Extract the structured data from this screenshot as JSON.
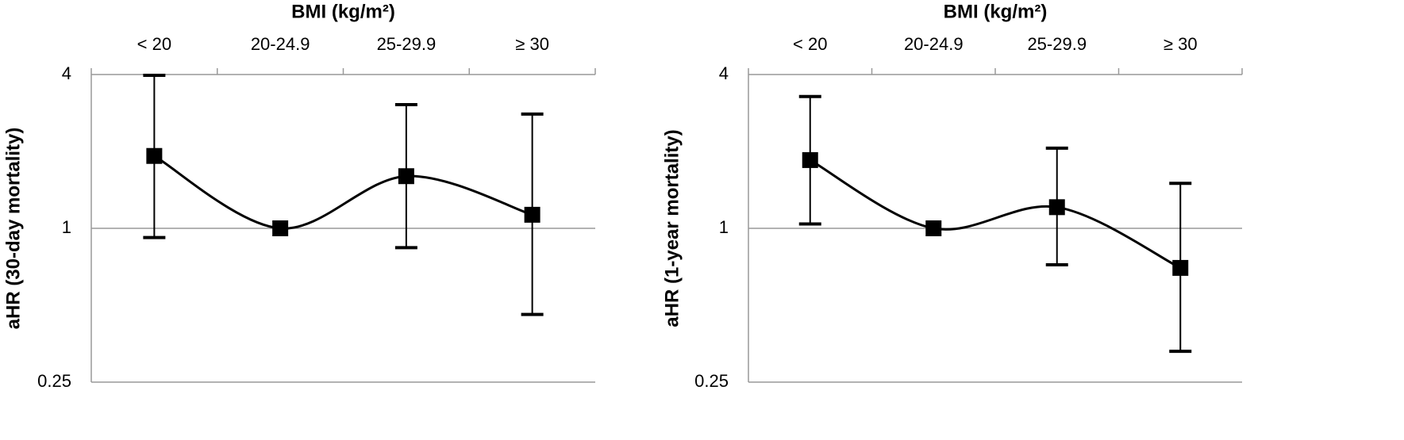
{
  "chart_data": [
    {
      "type": "line",
      "xlabel": "BMI (kg/m²)",
      "ylabel": "aHR (30-day mortality)",
      "categories": [
        "< 20",
        "20-24.9",
        "25-29.9",
        "≥ 30"
      ],
      "values": [
        1.92,
        1,
        1.6,
        1.13
      ],
      "ci_lower": [
        0.92,
        null,
        0.84,
        0.46
      ],
      "ci_upper": [
        3.97,
        null,
        3.05,
        2.8
      ],
      "color": "#000000",
      "log_y": true,
      "ylim": [
        0.25,
        4
      ],
      "yticks": [
        0.25,
        1,
        4
      ],
      "grid": true
    },
    {
      "type": "line",
      "xlabel": "BMI (kg/m²)",
      "ylabel": "aHR (1-year mortality)",
      "categories": [
        "< 20",
        "20-24.9",
        "25-29.9",
        "≥ 30"
      ],
      "values": [
        1.85,
        1,
        1.21,
        0.7
      ],
      "ci_lower": [
        1.04,
        null,
        0.72,
        0.33
      ],
      "ci_upper": [
        3.28,
        null,
        2.06,
        1.5
      ],
      "color": "#000000",
      "log_y": true,
      "ylim": [
        0.25,
        4
      ],
      "yticks": [
        0.25,
        1,
        4
      ],
      "grid": true
    }
  ]
}
